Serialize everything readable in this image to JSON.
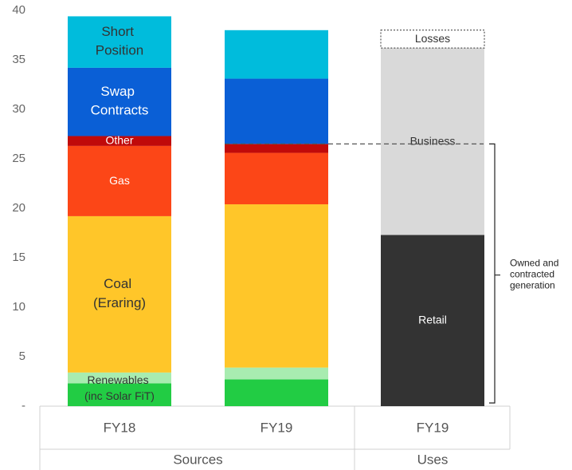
{
  "chart_data": {
    "type": "stacked_bar",
    "categories": [
      "FY18",
      "FY19",
      "FY19"
    ],
    "category_groups": [
      "Sources",
      "Sources",
      "Uses"
    ],
    "series": [
      {
        "name": "Renewables (inc Solar FiT)",
        "color": "#22cc44",
        "values": [
          2.3,
          2.7,
          null
        ]
      },
      {
        "color": "#a8ecb0",
        "values": [
          1.1,
          1.2,
          null
        ]
      },
      {
        "name": "Coal (Eraring)",
        "color": "#ffc629",
        "values": [
          15.8,
          16.5,
          null
        ]
      },
      {
        "name": "Gas",
        "color": "#fc4617",
        "values": [
          7.1,
          5.2,
          null
        ]
      },
      {
        "name": "Other",
        "color": "#c00a0a",
        "values": [
          1.0,
          0.9,
          null
        ]
      },
      {
        "name": "Swap Contracts",
        "color": "#0a5fd6",
        "values": [
          6.9,
          6.6,
          null
        ]
      },
      {
        "name": "Short Position",
        "color": "#00bcdc",
        "values": [
          5.2,
          4.9,
          null
        ]
      },
      {
        "name": "Retail",
        "color": "#333333",
        "values": [
          null,
          null,
          17.3
        ]
      },
      {
        "name": "Business",
        "color": "#d9d9d9",
        "values": [
          null,
          null,
          18.9
        ]
      },
      {
        "name": "Losses",
        "color": "#ffffff",
        "outline": "dotted",
        "values": [
          null,
          null,
          1.8
        ]
      }
    ],
    "annotation": "Owned and contracted generation",
    "ylim": [
      0,
      40
    ],
    "yticks": [
      {
        "value": 0,
        "label": "-"
      },
      5,
      10,
      15,
      20,
      25,
      30,
      35,
      40
    ],
    "grid": false
  }
}
